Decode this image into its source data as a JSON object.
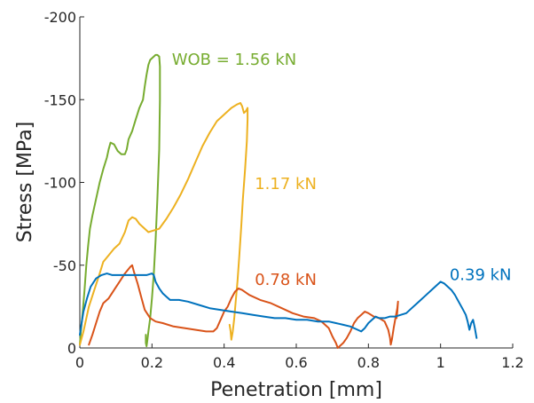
{
  "chart_data": {
    "type": "line",
    "xlabel": "Penetration [mm]",
    "ylabel": "Stress [MPa]",
    "xlim": [
      0,
      1.2
    ],
    "ylim": [
      -200,
      0
    ],
    "y_axis_reversed": true,
    "grid": false,
    "x_ticks": [
      "0",
      "0.2",
      "0.4",
      "0.6",
      "0.8",
      "1",
      "1.2"
    ],
    "y_ticks": [
      "0",
      "-50",
      "-100",
      "-150",
      "-200"
    ],
    "series": [
      {
        "name": "WOB = 1.56 kN",
        "color": "#77ac30",
        "points": [
          [
            0.0,
            -2
          ],
          [
            0.003,
            -10
          ],
          [
            0.008,
            -22
          ],
          [
            0.013,
            -35
          ],
          [
            0.018,
            -50
          ],
          [
            0.023,
            -62
          ],
          [
            0.028,
            -72
          ],
          [
            0.035,
            -80
          ],
          [
            0.045,
            -90
          ],
          [
            0.055,
            -100
          ],
          [
            0.065,
            -108
          ],
          [
            0.075,
            -115
          ],
          [
            0.08,
            -120
          ],
          [
            0.085,
            -124
          ],
          [
            0.095,
            -123
          ],
          [
            0.105,
            -119
          ],
          [
            0.115,
            -117
          ],
          [
            0.125,
            -117
          ],
          [
            0.13,
            -120
          ],
          [
            0.135,
            -126
          ],
          [
            0.145,
            -131
          ],
          [
            0.155,
            -138
          ],
          [
            0.165,
            -145
          ],
          [
            0.175,
            -150
          ],
          [
            0.18,
            -158
          ],
          [
            0.185,
            -165
          ],
          [
            0.19,
            -171
          ],
          [
            0.195,
            -174
          ],
          [
            0.2,
            -175
          ],
          [
            0.21,
            -177
          ],
          [
            0.215,
            -177
          ],
          [
            0.22,
            -176
          ],
          [
            0.222,
            -170
          ],
          [
            0.222,
            -150
          ],
          [
            0.22,
            -120
          ],
          [
            0.215,
            -90
          ],
          [
            0.21,
            -65
          ],
          [
            0.205,
            -45
          ],
          [
            0.2,
            -30
          ],
          [
            0.195,
            -18
          ],
          [
            0.19,
            -10
          ],
          [
            0.187,
            -4
          ],
          [
            0.185,
            -1
          ],
          [
            0.183,
            -3
          ],
          [
            0.183,
            -8
          ]
        ]
      },
      {
        "name": "1.17 kN",
        "color": "#edb120",
        "points": [
          [
            0.0,
            -2
          ],
          [
            0.01,
            -10
          ],
          [
            0.025,
            -25
          ],
          [
            0.04,
            -35
          ],
          [
            0.055,
            -45
          ],
          [
            0.065,
            -52
          ],
          [
            0.08,
            -56
          ],
          [
            0.095,
            -60
          ],
          [
            0.11,
            -63
          ],
          [
            0.125,
            -70
          ],
          [
            0.135,
            -77
          ],
          [
            0.145,
            -79
          ],
          [
            0.155,
            -78
          ],
          [
            0.165,
            -75
          ],
          [
            0.175,
            -73
          ],
          [
            0.19,
            -70
          ],
          [
            0.205,
            -71
          ],
          [
            0.22,
            -72
          ],
          [
            0.24,
            -78
          ],
          [
            0.26,
            -85
          ],
          [
            0.28,
            -93
          ],
          [
            0.3,
            -102
          ],
          [
            0.32,
            -112
          ],
          [
            0.34,
            -122
          ],
          [
            0.36,
            -130
          ],
          [
            0.38,
            -137
          ],
          [
            0.4,
            -141
          ],
          [
            0.42,
            -145
          ],
          [
            0.435,
            -147
          ],
          [
            0.445,
            -148
          ],
          [
            0.45,
            -146
          ],
          [
            0.455,
            -142
          ],
          [
            0.46,
            -143
          ],
          [
            0.465,
            -145
          ],
          [
            0.465,
            -138
          ],
          [
            0.463,
            -125
          ],
          [
            0.458,
            -108
          ],
          [
            0.452,
            -90
          ],
          [
            0.447,
            -72
          ],
          [
            0.442,
            -55
          ],
          [
            0.437,
            -40
          ],
          [
            0.432,
            -28
          ],
          [
            0.428,
            -18
          ],
          [
            0.424,
            -10
          ],
          [
            0.42,
            -5
          ],
          [
            0.418,
            -10
          ],
          [
            0.415,
            -14
          ]
        ]
      },
      {
        "name": "0.78 kN",
        "color": "#d95319",
        "points": [
          [
            0.025,
            -2
          ],
          [
            0.035,
            -8
          ],
          [
            0.045,
            -15
          ],
          [
            0.055,
            -22
          ],
          [
            0.065,
            -27
          ],
          [
            0.08,
            -30
          ],
          [
            0.095,
            -35
          ],
          [
            0.11,
            -40
          ],
          [
            0.125,
            -45
          ],
          [
            0.14,
            -49
          ],
          [
            0.145,
            -50
          ],
          [
            0.15,
            -46
          ],
          [
            0.16,
            -39
          ],
          [
            0.17,
            -31
          ],
          [
            0.18,
            -23
          ],
          [
            0.195,
            -18
          ],
          [
            0.21,
            -16
          ],
          [
            0.23,
            -15
          ],
          [
            0.26,
            -13
          ],
          [
            0.29,
            -12
          ],
          [
            0.32,
            -11
          ],
          [
            0.35,
            -10
          ],
          [
            0.37,
            -10
          ],
          [
            0.38,
            -12
          ],
          [
            0.39,
            -17
          ],
          [
            0.4,
            -22
          ],
          [
            0.41,
            -25
          ],
          [
            0.42,
            -30
          ],
          [
            0.43,
            -34
          ],
          [
            0.44,
            -36
          ],
          [
            0.45,
            -35
          ],
          [
            0.47,
            -32
          ],
          [
            0.5,
            -29
          ],
          [
            0.53,
            -27
          ],
          [
            0.56,
            -24
          ],
          [
            0.59,
            -21
          ],
          [
            0.62,
            -19
          ],
          [
            0.65,
            -18
          ],
          [
            0.67,
            -16
          ],
          [
            0.69,
            -12
          ],
          [
            0.7,
            -7
          ],
          [
            0.71,
            -3
          ],
          [
            0.715,
            0
          ],
          [
            0.72,
            -1
          ],
          [
            0.73,
            -3
          ],
          [
            0.74,
            -6
          ],
          [
            0.75,
            -10
          ],
          [
            0.76,
            -15
          ],
          [
            0.77,
            -18
          ],
          [
            0.78,
            -20
          ],
          [
            0.79,
            -22
          ],
          [
            0.8,
            -21
          ],
          [
            0.815,
            -19
          ],
          [
            0.83,
            -18
          ],
          [
            0.845,
            -16
          ],
          [
            0.855,
            -11
          ],
          [
            0.86,
            -6
          ],
          [
            0.862,
            -2
          ],
          [
            0.865,
            -5
          ],
          [
            0.87,
            -12
          ],
          [
            0.875,
            -18
          ],
          [
            0.88,
            -24
          ],
          [
            0.882,
            -28
          ],
          [
            0.88,
            -22
          ],
          [
            0.878,
            -18
          ]
        ]
      },
      {
        "name": "0.39 kN",
        "color": "#0072bd",
        "points": [
          [
            0.0,
            -8
          ],
          [
            0.005,
            -15
          ],
          [
            0.01,
            -22
          ],
          [
            0.02,
            -30
          ],
          [
            0.03,
            -37
          ],
          [
            0.045,
            -42
          ],
          [
            0.06,
            -44
          ],
          [
            0.075,
            -45
          ],
          [
            0.09,
            -44
          ],
          [
            0.1,
            -44
          ],
          [
            0.11,
            -44
          ],
          [
            0.125,
            -44
          ],
          [
            0.14,
            -44
          ],
          [
            0.155,
            -44
          ],
          [
            0.17,
            -44
          ],
          [
            0.185,
            -44
          ],
          [
            0.2,
            -45
          ],
          [
            0.205,
            -44
          ],
          [
            0.21,
            -40
          ],
          [
            0.22,
            -36
          ],
          [
            0.23,
            -33
          ],
          [
            0.24,
            -31
          ],
          [
            0.25,
            -29
          ],
          [
            0.275,
            -29
          ],
          [
            0.3,
            -28
          ],
          [
            0.33,
            -26
          ],
          [
            0.36,
            -24
          ],
          [
            0.39,
            -23
          ],
          [
            0.42,
            -22
          ],
          [
            0.45,
            -21
          ],
          [
            0.48,
            -20
          ],
          [
            0.51,
            -19
          ],
          [
            0.54,
            -18
          ],
          [
            0.57,
            -18
          ],
          [
            0.6,
            -17
          ],
          [
            0.63,
            -17
          ],
          [
            0.66,
            -16
          ],
          [
            0.69,
            -16
          ],
          [
            0.71,
            -15
          ],
          [
            0.73,
            -14
          ],
          [
            0.75,
            -13
          ],
          [
            0.77,
            -11
          ],
          [
            0.78,
            -10
          ],
          [
            0.79,
            -12
          ],
          [
            0.8,
            -15
          ],
          [
            0.81,
            -17
          ],
          [
            0.82,
            -19
          ],
          [
            0.83,
            -18
          ],
          [
            0.845,
            -18
          ],
          [
            0.86,
            -19
          ],
          [
            0.875,
            -19
          ],
          [
            0.89,
            -20
          ],
          [
            0.905,
            -21
          ],
          [
            0.92,
            -24
          ],
          [
            0.94,
            -28
          ],
          [
            0.96,
            -32
          ],
          [
            0.98,
            -36
          ],
          [
            0.99,
            -38
          ],
          [
            1.0,
            -40
          ],
          [
            1.01,
            -39
          ],
          [
            1.02,
            -37
          ],
          [
            1.03,
            -35
          ],
          [
            1.04,
            -32
          ],
          [
            1.05,
            -28
          ],
          [
            1.06,
            -24
          ],
          [
            1.07,
            -20
          ],
          [
            1.075,
            -16
          ],
          [
            1.08,
            -11
          ],
          [
            1.085,
            -15
          ],
          [
            1.09,
            -17
          ],
          [
            1.095,
            -12
          ],
          [
            1.1,
            -6
          ]
        ]
      }
    ],
    "annotations": [
      {
        "series": 0,
        "text": "WOB = 1.56 kN",
        "at": [
          0.255,
          -171
        ]
      },
      {
        "series": 1,
        "text": "1.17 kN",
        "at": [
          0.485,
          -96
        ]
      },
      {
        "series": 2,
        "text": "0.78 kN",
        "at": [
          0.485,
          -38
        ]
      },
      {
        "series": 3,
        "text": "0.39 kN",
        "at": [
          1.025,
          -41
        ]
      }
    ]
  }
}
